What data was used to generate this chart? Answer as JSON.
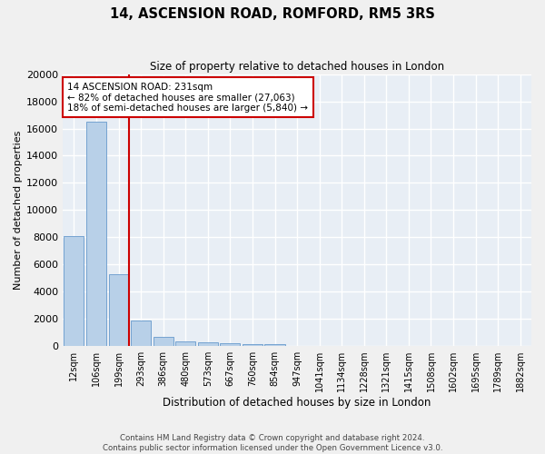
{
  "title": "14, ASCENSION ROAD, ROMFORD, RM5 3RS",
  "subtitle": "Size of property relative to detached houses in London",
  "xlabel": "Distribution of detached houses by size in London",
  "ylabel": "Number of detached properties",
  "bar_color": "#b8d0e8",
  "bar_edge_color": "#6699cc",
  "background_color": "#e8eef5",
  "fig_background_color": "#f0f0f0",
  "grid_color": "#ffffff",
  "categories": [
    "12sqm",
    "106sqm",
    "199sqm",
    "293sqm",
    "386sqm",
    "480sqm",
    "573sqm",
    "667sqm",
    "760sqm",
    "854sqm",
    "947sqm",
    "1041sqm",
    "1134sqm",
    "1228sqm",
    "1321sqm",
    "1415sqm",
    "1508sqm",
    "1602sqm",
    "1695sqm",
    "1789sqm",
    "1882sqm"
  ],
  "values": [
    8100,
    16500,
    5300,
    1850,
    700,
    350,
    270,
    210,
    170,
    130,
    0,
    0,
    0,
    0,
    0,
    0,
    0,
    0,
    0,
    0,
    0
  ],
  "ylim": [
    0,
    20000
  ],
  "yticks": [
    0,
    2000,
    4000,
    6000,
    8000,
    10000,
    12000,
    14000,
    16000,
    18000,
    20000
  ],
  "vline_color": "#cc0000",
  "annotation_text": "14 ASCENSION ROAD: 231sqm\n← 82% of detached houses are smaller (27,063)\n18% of semi-detached houses are larger (5,840) →",
  "annotation_box_color": "#ffffff",
  "annotation_box_edge": "#cc0000",
  "footer_line1": "Contains HM Land Registry data © Crown copyright and database right 2024.",
  "footer_line2": "Contains public sector information licensed under the Open Government Licence v3.0."
}
